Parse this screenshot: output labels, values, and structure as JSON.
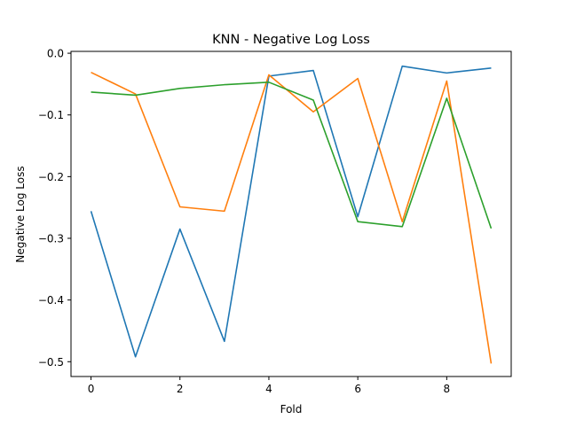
{
  "chart_data": {
    "type": "line",
    "title": "KNN - Negative Log Loss",
    "xlabel": "Fold",
    "ylabel": "Negative Log Loss",
    "x": [
      0,
      1,
      2,
      3,
      4,
      5,
      6,
      7,
      8,
      9
    ],
    "xlim": [
      -0.45,
      9.45
    ],
    "ylim": [
      -0.524,
      0.003
    ],
    "xticks": [
      0,
      2,
      4,
      6,
      8
    ],
    "yticks": [
      0.0,
      -0.1,
      -0.2,
      -0.3,
      -0.4,
      -0.5
    ],
    "xtick_labels": [
      "0",
      "2",
      "4",
      "6",
      "8"
    ],
    "ytick_labels": [
      "0.0",
      "−0.1",
      "−0.2",
      "−0.3",
      "−0.4",
      "−0.5"
    ],
    "grid": false,
    "legend": null,
    "series": [
      {
        "color": "#1f77b4",
        "values": [
          -0.256,
          -0.492,
          -0.285,
          -0.467,
          -0.037,
          -0.028,
          -0.265,
          -0.021,
          -0.032,
          -0.024
        ]
      },
      {
        "color": "#ff7f0e",
        "values": [
          -0.031,
          -0.066,
          -0.249,
          -0.256,
          -0.035,
          -0.095,
          -0.041,
          -0.273,
          -0.045,
          -0.503
        ]
      },
      {
        "color": "#2ca02c",
        "values": [
          -0.063,
          -0.068,
          -0.057,
          -0.051,
          -0.047,
          -0.076,
          -0.273,
          -0.281,
          -0.073,
          -0.284
        ]
      }
    ]
  }
}
